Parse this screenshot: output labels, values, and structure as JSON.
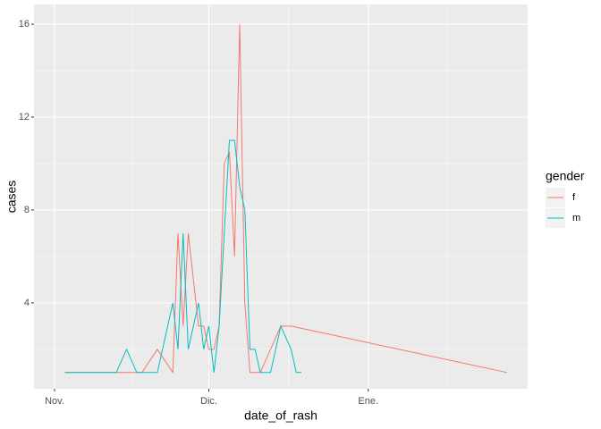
{
  "chart_data": {
    "type": "line",
    "x_label": "date_of_rash",
    "y_label": "cases",
    "legend_title": "gender",
    "legend": "right",
    "grid": true,
    "xlim": [
      -4,
      92
    ],
    "xticks": [
      {
        "value": 0,
        "label": "Nov."
      },
      {
        "value": 30,
        "label": "Dic."
      },
      {
        "value": 61,
        "label": "Ene."
      }
    ],
    "x_minor_grid": [
      15,
      45.5,
      76.3
    ],
    "ylim": [
      0.3,
      16.85
    ],
    "yticks": [
      4,
      8,
      12,
      16
    ],
    "y_minor_grid": [
      2,
      6,
      10,
      14
    ],
    "series": [
      {
        "name": "f",
        "color": "#F8766D",
        "x": [
          2,
          17,
          20,
          23,
          24,
          25,
          26,
          27,
          28,
          29,
          30,
          31,
          32,
          33,
          34,
          35,
          36,
          37,
          38,
          40,
          42,
          44,
          46,
          88
        ],
        "values": [
          1,
          1,
          2,
          1,
          7,
          3,
          7,
          5,
          3,
          3,
          2,
          2,
          3,
          10,
          10.5,
          6,
          16,
          4,
          1,
          1,
          2,
          3,
          3,
          1
        ]
      },
      {
        "name": "m",
        "color": "#00BFC4",
        "x": [
          2,
          12,
          14,
          16,
          20,
          23,
          24,
          25,
          26,
          27,
          28,
          29,
          30,
          31,
          32,
          33,
          34,
          35,
          36,
          37,
          38,
          39,
          40,
          42,
          44,
          46,
          47,
          48
        ],
        "values": [
          1,
          1,
          2,
          1,
          1,
          4,
          2,
          7,
          2,
          3,
          4,
          2,
          3,
          1,
          3,
          7,
          11,
          11,
          9,
          8,
          2,
          2,
          1,
          1,
          3,
          2,
          1,
          1
        ]
      }
    ]
  }
}
